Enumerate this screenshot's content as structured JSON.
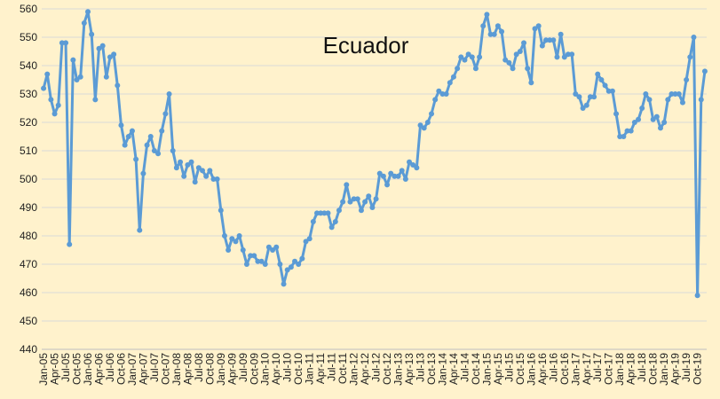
{
  "chart_data": {
    "type": "line",
    "title": "Ecuador",
    "xlabel": "",
    "ylabel": "",
    "ylim": [
      440,
      560
    ],
    "yticks": [
      440,
      450,
      460,
      470,
      480,
      490,
      500,
      510,
      520,
      530,
      540,
      550,
      560
    ],
    "grid": true,
    "legend": "none",
    "colors": {
      "background": "#fff2cc",
      "line": "#5b9bd5",
      "grid": "#d9d9d9"
    },
    "x_tick_labels": [
      "Jan-05",
      "Apr-05",
      "Jul-05",
      "Oct-05",
      "Jan-06",
      "Apr-06",
      "Jul-06",
      "Oct-06",
      "Jan-07",
      "Apr-07",
      "Jul-07",
      "Oct-07",
      "Jan-08",
      "Apr-08",
      "Jul-08",
      "Oct-08",
      "Jan-09",
      "Apr-09",
      "Jul-09",
      "Oct-09",
      "Jan-10",
      "Apr-10",
      "Jul-10",
      "Oct-10",
      "Jan-11",
      "Apr-11",
      "Jul-11",
      "Oct-11",
      "Jan-12",
      "Apr-12",
      "Jul-12",
      "Oct-12",
      "Jan-13",
      "Apr-13",
      "Jul-13",
      "Oct-13",
      "Jan-14",
      "Apr-14",
      "Jul-14",
      "Oct-14",
      "Jan-15",
      "Apr-15",
      "Jul-15",
      "Oct-15",
      "Jan-16",
      "Apr-16",
      "Jul-16",
      "Oct-16",
      "Jan-17",
      "Apr-17",
      "Jul-17",
      "Oct-17",
      "Jan-18",
      "Apr-18",
      "Jul-18",
      "Oct-18",
      "Jan-19",
      "Apr-19",
      "Jul-19",
      "Oct-19"
    ],
    "series": [
      {
        "name": "",
        "start": "Jan-05",
        "frequency": "monthly",
        "values": [
          532,
          537,
          528,
          523,
          526,
          548,
          548,
          477,
          542,
          535,
          536,
          555,
          559,
          551,
          528,
          546,
          547,
          536,
          543,
          544,
          533,
          519,
          512,
          515,
          517,
          507,
          482,
          502,
          512,
          515,
          510,
          509,
          517,
          523,
          530,
          510,
          504,
          506,
          501,
          505,
          506,
          499,
          504,
          503,
          501,
          503,
          500,
          500,
          489,
          480,
          475,
          479,
          478,
          480,
          475,
          470,
          473,
          473,
          471,
          471,
          470,
          476,
          475,
          476,
          470,
          463,
          468,
          469,
          471,
          470,
          472,
          478,
          479,
          485,
          488,
          488,
          488,
          488,
          483,
          485,
          489,
          492,
          498,
          492,
          493,
          493,
          489,
          492,
          494,
          490,
          493,
          502,
          501,
          498,
          502,
          501,
          501,
          503,
          500,
          506,
          505,
          504,
          519,
          518,
          520,
          523,
          528,
          531,
          530,
          530,
          534,
          536,
          539,
          543,
          542,
          544,
          543,
          539,
          543,
          554,
          558,
          551,
          551,
          554,
          552,
          542,
          541,
          539,
          544,
          545,
          548,
          539,
          534,
          553,
          554,
          547,
          549,
          549,
          549,
          543,
          551,
          543,
          544,
          544,
          530,
          529,
          525,
          526,
          529,
          529,
          537,
          535,
          533,
          531,
          531,
          523,
          515,
          515,
          517,
          517,
          520,
          521,
          525,
          530,
          528,
          521,
          522,
          518,
          520,
          528,
          530,
          530,
          530,
          527,
          535,
          543,
          550,
          459,
          528,
          538
        ]
      }
    ]
  }
}
